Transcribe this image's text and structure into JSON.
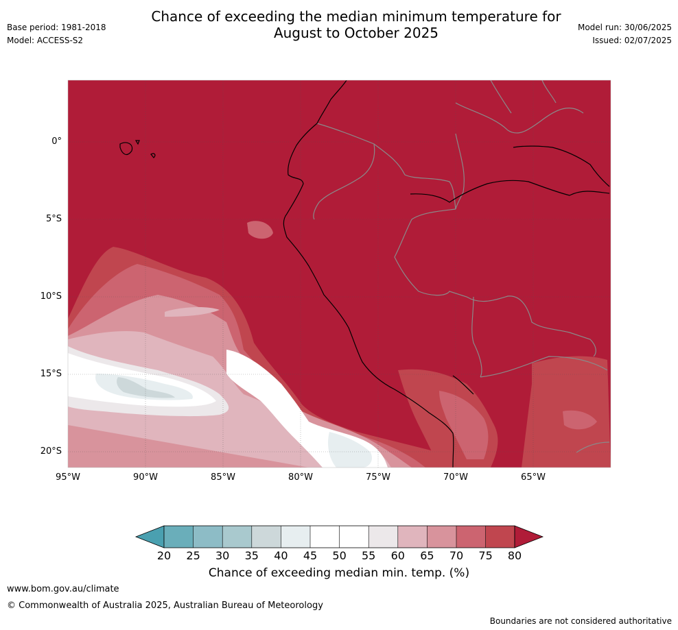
{
  "header": {
    "base_period": "Base period: 1981-2018",
    "model": "Model: ACCESS-S2",
    "title_line1": "Chance of exceeding the median minimum temperature for",
    "title_line2": "August to October 2025",
    "model_run": "Model run: 30/06/2025",
    "issued": "Issued: 02/07/2025"
  },
  "map": {
    "lat_labels": [
      "0°",
      "5°S",
      "10°S",
      "15°S",
      "20°S"
    ],
    "lon_labels": [
      "95°W",
      "90°W",
      "85°W",
      "80°W",
      "75°W",
      "70°W",
      "65°W"
    ],
    "colors": {
      "lt20": "#4aa0b0",
      "20_25": "#6aaeba",
      "25_30": "#8dbcc6",
      "30_35": "#a9c9ce",
      "35_40": "#cdd8da",
      "40_45": "#e7eef0",
      "45_55": "#ffffff",
      "55_60": "#ece8ea",
      "60_65": "#e0b5bd",
      "65_70": "#d8939c",
      "70_75": "#cc6470",
      "75_80": "#c0464f",
      "gt80": "#b01c38"
    }
  },
  "colorbar": {
    "ticks": [
      "20",
      "25",
      "30",
      "35",
      "40",
      "45",
      "50",
      "55",
      "60",
      "65",
      "70",
      "75",
      "80"
    ],
    "title": "Chance of exceeding median min. temp. (%)"
  },
  "footer": {
    "url": "www.bom.gov.au/climate",
    "copyright": "© Commonwealth of Australia 2025, Australian Bureau of Meteorology",
    "disclaimer": "Boundaries are not considered authoritative"
  }
}
